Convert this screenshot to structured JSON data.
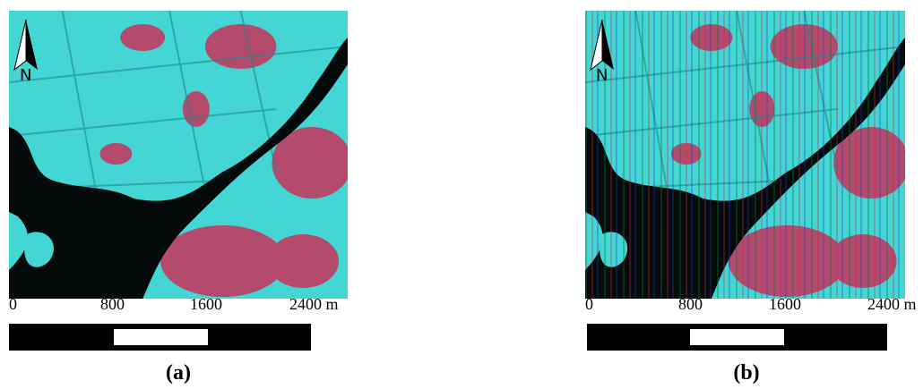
{
  "panels": [
    {
      "north": "N",
      "scale_labels": [
        "0",
        "800",
        "1600",
        "2400 m"
      ],
      "caption": "(a)"
    },
    {
      "north": "N",
      "scale_labels": [
        "0",
        "800",
        "1600",
        "2400 m"
      ],
      "caption": "(b)"
    }
  ]
}
